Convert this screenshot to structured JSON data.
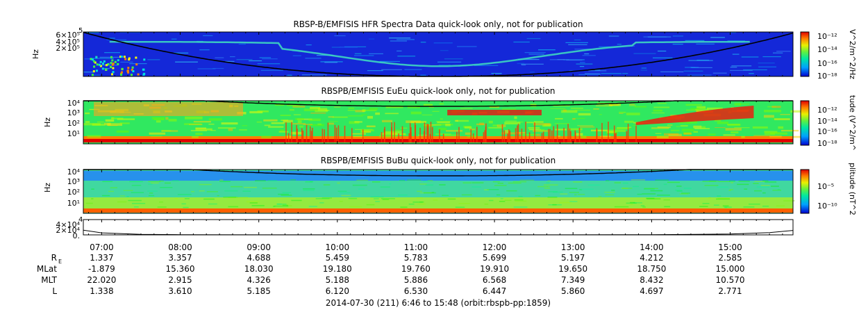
{
  "chart_data": [
    {
      "type": "heatmap",
      "title": "RBSP-B/EMFISIS  HFR Spectra Data quick-look only, not for publication",
      "ylabel": "Hz",
      "yticks": [
        "2×10⁵",
        "4×10⁵",
        "6×10⁵"
      ],
      "ylim": [
        10000,
        500000
      ],
      "ytick_top": "5",
      "colorbar_label": "V^2/m^2/Hz",
      "colorbar_ticks": [
        "10⁻¹²",
        "10⁻¹⁴",
        "10⁻¹⁶",
        "10⁻¹⁸"
      ],
      "colorbar_range_log10": [
        -18.5,
        -11.5
      ],
      "curve_label": "electron cyclotron frequency (black line)"
    },
    {
      "type": "heatmap",
      "title": "RBSPB/EMFISIS  EuEu quick-look only, not for publication",
      "ylabel": "Hz",
      "yticks": [
        "10⁰",
        "10¹",
        "10²",
        "10³",
        "10⁴"
      ],
      "ylim_log10": [
        -0.5,
        4.3
      ],
      "colorbar_label": "tude (V^2/m^",
      "colorbar_ticks": [
        "10⁻¹²",
        "10⁻¹⁴",
        "10⁻¹⁶",
        "10⁻¹⁸"
      ],
      "colorbar_range_log10": [
        -18.5,
        -10.5
      ]
    },
    {
      "type": "heatmap",
      "title": "RBSPB/EMFISIS  BuBu quick-look only, not for publication",
      "ylabel": "Hz",
      "yticks": [
        "10¹",
        "10²",
        "10³",
        "10⁴"
      ],
      "ylim_log10": [
        0.2,
        4.3
      ],
      "colorbar_label": "plitude (nT^2",
      "colorbar_ticks": [
        "10⁻⁵",
        "10⁻¹⁰"
      ],
      "colorbar_range_log10": [
        -12,
        -2
      ]
    },
    {
      "type": "line",
      "yticks": [
        "0.",
        "2×10⁴",
        "4×10⁴"
      ],
      "ylim": [
        0,
        45000
      ],
      "ytick_top": "4",
      "x_hours": [
        6.767,
        7.0,
        7.5,
        8.0,
        9.0,
        10.0,
        11.0,
        12.0,
        13.0,
        14.0,
        15.0,
        15.5,
        15.8
      ],
      "values": [
        14000,
        6000,
        1500,
        600,
        250,
        180,
        160,
        170,
        240,
        600,
        2500,
        6500,
        13000
      ]
    }
  ],
  "time_axis": {
    "range_hours": [
      6.7667,
      15.8
    ],
    "labels": [
      "07:00",
      "08:00",
      "09:00",
      "10:00",
      "11:00",
      "12:00",
      "13:00",
      "14:00",
      "15:00"
    ],
    "hours": [
      7,
      8,
      9,
      10,
      11,
      12,
      13,
      14,
      15
    ],
    "footer": "2014-07-30 (211) 6:46 to 15:48 (orbit:rbspb-pp:1859)"
  },
  "ephemeris": {
    "rows": [
      {
        "label": "R",
        "sub": "E",
        "values": [
          "1.337",
          "3.357",
          "4.688",
          "5.459",
          "5.783",
          "5.699",
          "5.197",
          "4.212",
          "2.585"
        ]
      },
      {
        "label": "MLat",
        "sub": "",
        "values": [
          "-1.879",
          "15.360",
          "18.030",
          "19.180",
          "19.760",
          "19.910",
          "19.650",
          "18.750",
          "15.000"
        ]
      },
      {
        "label": "MLT",
        "sub": "",
        "values": [
          "22.020",
          "2.915",
          "4.326",
          "5.188",
          "5.886",
          "6.568",
          "7.349",
          "8.432",
          "10.570"
        ]
      },
      {
        "label": "L",
        "sub": "",
        "values": [
          "1.338",
          "3.610",
          "5.185",
          "6.120",
          "6.530",
          "6.447",
          "5.860",
          "4.697",
          "2.771"
        ]
      }
    ]
  }
}
